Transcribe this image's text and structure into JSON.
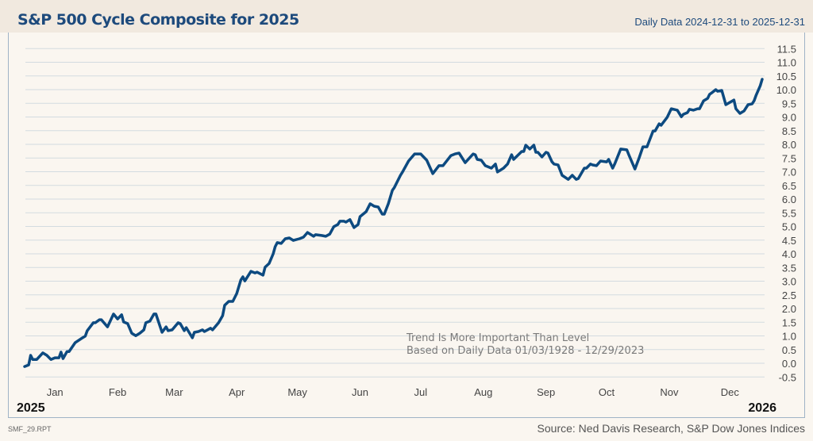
{
  "header": {
    "title": "S&P 500 Cycle Composite for 2025",
    "subtitle": "Daily Data 2024-12-31 to 2025-12-31"
  },
  "footer": {
    "report_code": "SMF_29.RPT",
    "source": "Source: Ned Davis Research, S&P Dow Jones Indices"
  },
  "chart_data": {
    "type": "line",
    "title": "S&P 500 Cycle Composite for 2025",
    "xlabel": "",
    "ylabel": "",
    "ylim": [
      -0.5,
      11.5
    ],
    "xlim": [
      "2024-12-31",
      "2025-12-31"
    ],
    "grid": true,
    "y_ticks": [
      "-0.5",
      "0.0",
      "0.5",
      "1.0",
      "1.5",
      "2.0",
      "2.5",
      "3.0",
      "3.5",
      "4.0",
      "4.5",
      "5.0",
      "5.5",
      "6.0",
      "6.5",
      "7.0",
      "7.5",
      "8.0",
      "8.5",
      "9.0",
      "9.5",
      "10.0",
      "10.5",
      "11.0",
      "11.5"
    ],
    "x_tick_labels": [
      "Jan",
      "Feb",
      "Mar",
      "Apr",
      "May",
      "Jun",
      "Jul",
      "Aug",
      "Sep",
      "Oct",
      "Nov",
      "Dec"
    ],
    "year_start_label": "2025",
    "year_end_label": "2026",
    "annotation": [
      "Trend Is More Important Than Level",
      "Based on Daily Data 01/03/1928 - 12/29/2023"
    ],
    "line_color": "#0d4a80",
    "series": [
      {
        "x": [
          "2024-12-31",
          "2025-01-02",
          "2025-01-03",
          "2025-01-04",
          "2025-01-06",
          "2025-01-09",
          "2025-01-11",
          "2025-01-13",
          "2025-01-15",
          "2025-01-17",
          "2025-01-18",
          "2025-01-19",
          "2025-01-21",
          "2025-01-22",
          "2025-01-25",
          "2025-01-28",
          "2025-01-30",
          "2025-01-31",
          "2025-02-03",
          "2025-02-04",
          "2025-02-06",
          "2025-02-07",
          "2025-02-10",
          "2025-02-13",
          "2025-02-15",
          "2025-02-17",
          "2025-02-18",
          "2025-02-20",
          "2025-02-22",
          "2025-02-24",
          "2025-02-26",
          "2025-02-28",
          "2025-03-01",
          "2025-03-03",
          "2025-03-05",
          "2025-03-06",
          "2025-03-09",
          "2025-03-11",
          "2025-03-12",
          "2025-03-14",
          "2025-03-17",
          "2025-03-18",
          "2025-03-20",
          "2025-03-21",
          "2025-03-24",
          "2025-03-25",
          "2025-03-27",
          "2025-03-29",
          "2025-03-30",
          "2025-04-02",
          "2025-04-03",
          "2025-04-06",
          "2025-04-08",
          "2025-04-09",
          "2025-04-11",
          "2025-04-13",
          "2025-04-15",
          "2025-04-17",
          "2025-04-18",
          "2025-04-19",
          "2025-04-22",
          "2025-04-24",
          "2025-04-25",
          "2025-04-28",
          "2025-04-29",
          "2025-05-01",
          "2025-05-03",
          "2025-05-04",
          "2025-05-05",
          "2025-05-07",
          "2025-05-09",
          "2025-05-11",
          "2025-05-13",
          "2025-05-16",
          "2025-05-18",
          "2025-05-20",
          "2025-05-23",
          "2025-05-24",
          "2025-05-27",
          "2025-05-29",
          "2025-05-31",
          "2025-06-02",
          "2025-06-04",
          "2025-06-05",
          "2025-06-07",
          "2025-06-08",
          "2025-06-10",
          "2025-06-12",
          "2025-06-14",
          "2025-06-15",
          "2025-06-18",
          "2025-06-20",
          "2025-06-22",
          "2025-06-24",
          "2025-06-26",
          "2025-06-27",
          "2025-06-29",
          "2025-07-01",
          "2025-07-02",
          "2025-07-05",
          "2025-07-06",
          "2025-07-09",
          "2025-07-12",
          "2025-07-15",
          "2025-07-18",
          "2025-07-21",
          "2025-07-24",
          "2025-07-26",
          "2025-07-30",
          "2025-08-01",
          "2025-08-03",
          "2025-08-06",
          "2025-08-10",
          "2025-08-11",
          "2025-08-12",
          "2025-08-14",
          "2025-08-16",
          "2025-08-19",
          "2025-08-21",
          "2025-08-22",
          "2025-08-25",
          "2025-08-27",
          "2025-08-29",
          "2025-08-30",
          "2025-09-03",
          "2025-09-04",
          "2025-09-05",
          "2025-09-07",
          "2025-09-09",
          "2025-09-10",
          "2025-09-11",
          "2025-09-13",
          "2025-09-15",
          "2025-09-16",
          "2025-09-18",
          "2025-09-19",
          "2025-09-21",
          "2025-09-23",
          "2025-09-26",
          "2025-09-28",
          "2025-09-30",
          "2025-10-01",
          "2025-10-04",
          "2025-10-05",
          "2025-10-07",
          "2025-10-08",
          "2025-10-10",
          "2025-10-12",
          "2025-10-15",
          "2025-10-16",
          "2025-10-18",
          "2025-10-19",
          "2025-10-22",
          "2025-10-25",
          "2025-10-26",
          "2025-10-29",
          "2025-10-31",
          "2025-11-02",
          "2025-11-04",
          "2025-11-07",
          "2025-11-08",
          "2025-11-10",
          "2025-11-11",
          "2025-11-14",
          "2025-11-16",
          "2025-11-19",
          "2025-11-21",
          "2025-11-22",
          "2025-11-24",
          "2025-11-25",
          "2025-11-27",
          "2025-11-29",
          "2025-11-30",
          "2025-12-02",
          "2025-12-04",
          "2025-12-05",
          "2025-12-06",
          "2025-12-08",
          "2025-12-09",
          "2025-12-11",
          "2025-12-13",
          "2025-12-17",
          "2025-12-18",
          "2025-12-20",
          "2025-12-22",
          "2025-12-24",
          "2025-12-26",
          "2025-12-27",
          "2025-12-28",
          "2025-12-30",
          "2025-12-31"
        ],
        "y": [
          -0.12,
          -0.06,
          0.29,
          0.14,
          0.14,
          0.38,
          0.29,
          0.14,
          0.2,
          0.2,
          0.41,
          0.17,
          0.43,
          0.43,
          0.75,
          0.9,
          0.99,
          1.19,
          1.48,
          1.48,
          1.59,
          1.59,
          1.33,
          1.8,
          1.62,
          1.77,
          1.51,
          1.45,
          1.1,
          1.01,
          1.1,
          1.22,
          1.48,
          1.54,
          1.8,
          1.8,
          1.13,
          1.33,
          1.19,
          1.22,
          1.48,
          1.45,
          1.19,
          1.3,
          0.93,
          1.13,
          1.16,
          1.22,
          1.16,
          1.28,
          1.22,
          1.48,
          1.74,
          2.12,
          2.26,
          2.26,
          2.55,
          3.04,
          3.16,
          3.01,
          3.36,
          3.3,
          3.33,
          3.22,
          3.51,
          3.65,
          4.0,
          4.26,
          4.41,
          4.38,
          4.55,
          4.58,
          4.49,
          4.55,
          4.61,
          4.78,
          4.64,
          4.7,
          4.67,
          4.64,
          4.72,
          4.99,
          5.07,
          5.19,
          5.19,
          5.16,
          5.25,
          4.96,
          5.07,
          5.36,
          5.54,
          5.83,
          5.74,
          5.71,
          5.45,
          5.45,
          5.83,
          6.32,
          6.43,
          6.87,
          6.99,
          7.39,
          7.65,
          7.65,
          7.42,
          6.93,
          7.22,
          7.22,
          7.59,
          7.65,
          7.68,
          7.33,
          7.65,
          7.62,
          7.45,
          7.42,
          7.22,
          7.13,
          7.28,
          6.99,
          7.13,
          7.28,
          7.62,
          7.45,
          7.74,
          7.74,
          7.97,
          7.83,
          7.97,
          7.71,
          7.71,
          7.54,
          7.71,
          7.68,
          7.36,
          7.28,
          7.25,
          6.87,
          6.72,
          6.87,
          6.72,
          6.75,
          7.13,
          7.13,
          7.28,
          7.25,
          7.22,
          7.39,
          7.36,
          7.45,
          7.13,
          7.28,
          7.83,
          7.8,
          7.62,
          7.1,
          7.48,
          7.91,
          7.91,
          8.49,
          8.49,
          8.75,
          8.7,
          8.99,
          9.3,
          9.25,
          9.01,
          9.1,
          9.16,
          9.28,
          9.25,
          9.3,
          9.3,
          9.59,
          9.68,
          9.83,
          9.88,
          10.0,
          9.94,
          9.97,
          9.45,
          9.62,
          9.3,
          9.13,
          9.22,
          9.45,
          9.48,
          9.59,
          9.8,
          10.14,
          10.38
        ]
      }
    ]
  }
}
